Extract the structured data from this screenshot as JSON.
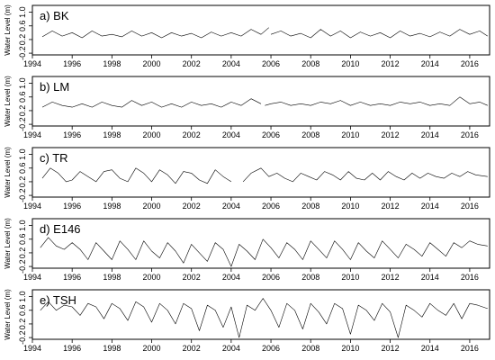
{
  "chart_data": [
    {
      "type": "line",
      "panel_label": "a) BK",
      "ylabel": "Water Level (m)",
      "xlim": [
        1994.0,
        2017.0
      ],
      "ylim": [
        -0.25,
        1.2
      ],
      "xticks": [
        1994,
        1996,
        1998,
        2000,
        2002,
        2004,
        2006,
        2008,
        2010,
        2012,
        2014,
        2016
      ],
      "xtick_labels": [
        "1994",
        "1996",
        "1998",
        "2000",
        "2002",
        "2004",
        "2006",
        "2008",
        "2010",
        "2012",
        "2014",
        "2016"
      ],
      "yticks": [
        -0.2,
        0.2,
        0.6,
        1.0
      ],
      "ytick_labels": [
        "-0.2",
        "0.2",
        "0.6",
        "1.0"
      ],
      "series": [
        {
          "segments": [
            {
              "x": [
                1994.5,
                1995.0,
                1995.5,
                1996.0,
                1996.5,
                1997.0,
                1997.5,
                1998.0,
                1998.5,
                1999.0,
                1999.5,
                2000.0,
                2000.5,
                2001.0,
                2001.5,
                2002.0,
                2002.5,
                2003.0,
                2003.5,
                2004.0,
                2004.5,
                2005.0,
                2005.5,
                2005.9
              ],
              "y": [
                0.28,
                0.45,
                0.3,
                0.4,
                0.25,
                0.45,
                0.3,
                0.35,
                0.28,
                0.45,
                0.3,
                0.4,
                0.25,
                0.4,
                0.3,
                0.38,
                0.25,
                0.42,
                0.3,
                0.4,
                0.3,
                0.5,
                0.35,
                0.55
              ]
            },
            {
              "x": [
                2006.0,
                2006.5,
                2007.0,
                2007.5,
                2008.0,
                2008.5,
                2009.0,
                2009.5,
                2010.0,
                2010.5,
                2011.0,
                2011.5,
                2012.0,
                2012.5,
                2013.0,
                2013.5,
                2014.0,
                2014.5,
                2015.0,
                2015.5,
                2016.0,
                2016.5,
                2016.9
              ],
              "y": [
                0.35,
                0.45,
                0.3,
                0.38,
                0.25,
                0.5,
                0.3,
                0.45,
                0.25,
                0.42,
                0.3,
                0.4,
                0.25,
                0.45,
                0.3,
                0.38,
                0.28,
                0.42,
                0.3,
                0.5,
                0.35,
                0.45,
                0.3
              ]
            }
          ]
        }
      ]
    },
    {
      "type": "line",
      "panel_label": "b) LM",
      "ylabel": "Water Level (m)",
      "xlim": [
        1994.0,
        2017.0
      ],
      "ylim": [
        -0.25,
        1.2
      ],
      "xticks": [
        1994,
        1996,
        1998,
        2000,
        2002,
        2004,
        2006,
        2008,
        2010,
        2012,
        2014,
        2016
      ],
      "xtick_labels": [
        "1994",
        "1996",
        "1998",
        "2000",
        "2002",
        "2004",
        "2006",
        "2008",
        "2010",
        "2012",
        "2014",
        "2016"
      ],
      "yticks": [
        -0.2,
        0.2,
        0.6,
        1.0
      ],
      "ytick_labels": [
        "-0.2",
        "0.2",
        "0.6",
        "1.0"
      ],
      "series": [
        {
          "segments": [
            {
              "x": [
                1994.5,
                1995.0,
                1995.5,
                1996.0,
                1996.5,
                1997.0,
                1997.5,
                1998.0,
                1998.5,
                1999.0,
                1999.5,
                2000.0,
                2000.5,
                2001.0,
                2001.5,
                2002.0,
                2002.5,
                2003.0,
                2003.5,
                2004.0,
                2004.5,
                2005.0,
                2005.5
              ],
              "y": [
                0.3,
                0.45,
                0.35,
                0.3,
                0.4,
                0.3,
                0.45,
                0.35,
                0.3,
                0.5,
                0.35,
                0.45,
                0.3,
                0.4,
                0.3,
                0.45,
                0.35,
                0.4,
                0.3,
                0.45,
                0.35,
                0.55,
                0.4
              ]
            },
            {
              "x": [
                2005.7,
                2006.0,
                2006.5,
                2007.0,
                2007.5,
                2008.0,
                2008.5,
                2009.0,
                2009.5,
                2010.0,
                2010.5,
                2011.0,
                2011.5,
                2012.0,
                2012.5,
                2013.0,
                2013.5,
                2014.0,
                2014.5,
                2015.0,
                2015.5,
                2016.0,
                2016.5,
                2016.9
              ],
              "y": [
                0.35,
                0.4,
                0.45,
                0.35,
                0.4,
                0.35,
                0.45,
                0.4,
                0.5,
                0.35,
                0.45,
                0.35,
                0.4,
                0.35,
                0.45,
                0.4,
                0.45,
                0.35,
                0.4,
                0.35,
                0.6,
                0.4,
                0.45,
                0.35
              ]
            }
          ]
        }
      ]
    },
    {
      "type": "line",
      "panel_label": "c) TR",
      "ylabel": "Water Level (m)",
      "xlim": [
        1994.0,
        2017.0
      ],
      "ylim": [
        -0.25,
        1.2
      ],
      "xticks": [
        1994,
        1996,
        1998,
        2000,
        2002,
        2004,
        2006,
        2008,
        2010,
        2012,
        2014,
        2016
      ],
      "xtick_labels": [
        "1994",
        "1996",
        "1998",
        "2000",
        "2002",
        "2004",
        "2006",
        "2008",
        "2010",
        "2012",
        "2014",
        "2016"
      ],
      "yticks": [
        -0.2,
        0.2,
        0.6,
        1.0
      ],
      "ytick_labels": [
        "-0.2",
        "0.2",
        "0.6",
        "1.0"
      ],
      "series": [
        {
          "segments": [
            {
              "x": [
                1994.5,
                1994.9,
                1995.3,
                1995.7,
                1996.0,
                1996.4,
                1996.8,
                1997.2,
                1997.6,
                1998.0,
                1998.4,
                1998.8,
                1999.2,
                1999.6,
                2000.0,
                2000.4,
                2000.8,
                2001.2,
                2001.6,
                2002.0,
                2002.4,
                2002.8,
                2003.2,
                2003.6,
                2004.0
              ],
              "y": [
                0.3,
                0.6,
                0.45,
                0.2,
                0.25,
                0.5,
                0.35,
                0.2,
                0.5,
                0.55,
                0.3,
                0.2,
                0.6,
                0.45,
                0.2,
                0.55,
                0.4,
                0.15,
                0.5,
                0.45,
                0.25,
                0.15,
                0.55,
                0.35,
                0.2
              ]
            },
            {
              "x": [
                2004.6,
                2005.0,
                2005.5,
                2005.9,
                2006.3,
                2006.7,
                2007.1,
                2007.5,
                2007.9,
                2008.3,
                2008.7,
                2009.1,
                2009.5,
                2009.9,
                2010.3,
                2010.7,
                2011.1,
                2011.5,
                2011.9,
                2012.3,
                2012.7,
                2013.1,
                2013.5,
                2013.9,
                2014.3,
                2014.7,
                2015.1,
                2015.5,
                2015.9,
                2016.3,
                2016.9
              ],
              "y": [
                0.2,
                0.45,
                0.6,
                0.35,
                0.45,
                0.3,
                0.2,
                0.45,
                0.35,
                0.25,
                0.5,
                0.4,
                0.25,
                0.5,
                0.3,
                0.25,
                0.45,
                0.25,
                0.5,
                0.35,
                0.25,
                0.45,
                0.3,
                0.45,
                0.35,
                0.3,
                0.45,
                0.35,
                0.5,
                0.4,
                0.35
              ]
            }
          ]
        }
      ]
    },
    {
      "type": "line",
      "panel_label": "d) E146",
      "ylabel": "Water Level (m)",
      "xlim": [
        1994.0,
        2017.0
      ],
      "ylim": [
        -0.25,
        1.2
      ],
      "xticks": [
        1994,
        1996,
        1998,
        2000,
        2002,
        2004,
        2006,
        2008,
        2010,
        2012,
        2014,
        2016
      ],
      "xtick_labels": [
        "1994",
        "1996",
        "1998",
        "2000",
        "2002",
        "2004",
        "2006",
        "2008",
        "2010",
        "2012",
        "2014",
        "2016"
      ],
      "yticks": [
        -0.2,
        0.2,
        0.6,
        1.0
      ],
      "ytick_labels": [
        "-0.2",
        "0.2",
        "0.6",
        "1.0"
      ],
      "series": [
        {
          "segments": [
            {
              "x": [
                1994.4,
                1994.8,
                1995.2,
                1995.6,
                1996.0,
                1996.4,
                1996.8,
                1997.2,
                1997.6,
                1998.0,
                1998.4,
                1998.8,
                1999.2,
                1999.6,
                2000.0,
                2000.4,
                2000.8,
                2001.2,
                2001.6,
                2002.0,
                2002.4,
                2002.8,
                2003.2,
                2003.6,
                2004.0,
                2004.4,
                2004.8,
                2005.2,
                2005.6,
                2006.0,
                2006.4,
                2006.8,
                2007.2,
                2007.6,
                2008.0,
                2008.4,
                2008.8,
                2009.2,
                2009.6,
                2010.0,
                2010.4,
                2010.8,
                2011.2,
                2011.6,
                2012.0,
                2012.4,
                2012.8,
                2013.2,
                2013.6,
                2014.0,
                2014.4,
                2014.8,
                2015.2,
                2015.6,
                2016.0,
                2016.4,
                2016.9
              ],
              "y": [
                0.35,
                0.65,
                0.4,
                0.3,
                0.5,
                0.3,
                0.0,
                0.5,
                0.25,
                0.0,
                0.55,
                0.3,
                0.0,
                0.55,
                0.25,
                0.05,
                0.5,
                0.25,
                -0.1,
                0.45,
                0.2,
                -0.05,
                0.5,
                0.3,
                -0.2,
                0.45,
                0.25,
                0.0,
                0.6,
                0.35,
                0.05,
                0.5,
                0.3,
                0.0,
                0.55,
                0.3,
                0.05,
                0.55,
                0.3,
                0.0,
                0.5,
                0.25,
                0.05,
                0.55,
                0.3,
                0.05,
                0.45,
                0.3,
                0.1,
                0.5,
                0.3,
                0.1,
                0.5,
                0.35,
                0.55,
                0.45,
                0.4
              ]
            }
          ]
        }
      ]
    },
    {
      "type": "line",
      "panel_label": "e) TSH",
      "ylabel": "Water Level (m)",
      "xlim": [
        1994.0,
        2017.0
      ],
      "ylim": [
        -0.25,
        1.2
      ],
      "xticks": [
        1994,
        1996,
        1998,
        2000,
        2002,
        2004,
        2006,
        2008,
        2010,
        2012,
        2014,
        2016
      ],
      "xtick_labels": [
        "1994",
        "1996",
        "1998",
        "2000",
        "2002",
        "2004",
        "2006",
        "2008",
        "2010",
        "2012",
        "2014",
        "2016"
      ],
      "yticks": [
        -0.2,
        0.2,
        0.6,
        1.0
      ],
      "ytick_labels": [
        "-0.2",
        "0.2",
        "0.6",
        "1.0"
      ],
      "series": [
        {
          "segments": [
            {
              "x": [
                1994.4,
                1994.8,
                1995.2,
                1995.6,
                1996.0,
                1996.4,
                1996.8,
                1997.2,
                1997.6,
                1998.0,
                1998.4,
                1998.8,
                1999.2,
                1999.6,
                2000.0,
                2000.4,
                2000.8,
                2001.2,
                2001.6,
                2002.0,
                2002.4,
                2002.8,
                2003.2,
                2003.6,
                2004.0,
                2004.4,
                2004.8,
                2005.2,
                2005.6,
                2006.0,
                2006.4,
                2006.8,
                2007.2,
                2007.6,
                2008.0,
                2008.4,
                2008.8,
                2009.2,
                2009.6,
                2010.0,
                2010.4,
                2010.8,
                2011.2,
                2011.6,
                2012.0,
                2012.4,
                2012.8,
                2013.2,
                2013.6,
                2014.0,
                2014.4,
                2014.8,
                2015.2,
                2015.6,
                2016.0,
                2016.4,
                2016.9
              ],
              "y": [
                0.6,
                0.85,
                0.6,
                0.75,
                0.7,
                0.45,
                0.8,
                0.7,
                0.35,
                0.8,
                0.65,
                0.3,
                0.85,
                0.7,
                0.25,
                0.8,
                0.6,
                0.2,
                0.8,
                0.65,
                0.0,
                0.75,
                0.6,
                0.1,
                0.7,
                -0.2,
                0.75,
                0.6,
                0.95,
                0.6,
                0.1,
                0.8,
                0.6,
                0.05,
                0.8,
                0.55,
                0.2,
                0.8,
                0.65,
                -0.1,
                0.75,
                0.6,
                0.3,
                0.8,
                0.55,
                -0.2,
                0.75,
                0.6,
                0.4,
                0.8,
                0.6,
                0.45,
                0.8,
                0.35,
                0.8,
                0.75,
                0.65
              ]
            }
          ]
        }
      ]
    }
  ]
}
